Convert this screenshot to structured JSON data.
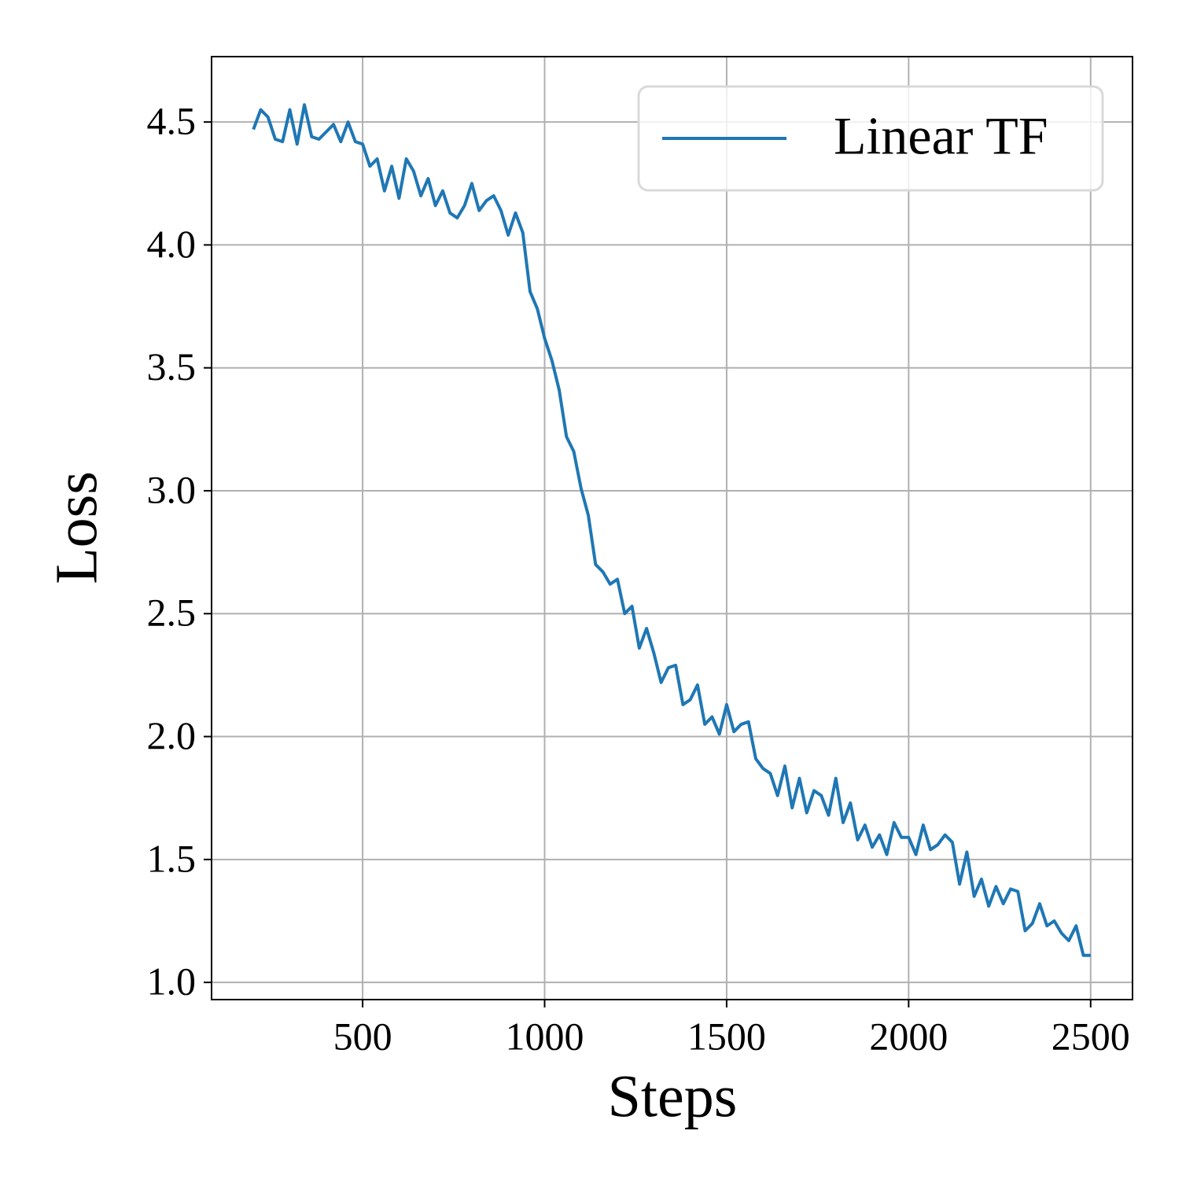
{
  "chart_data": {
    "type": "line",
    "x_label": "Steps",
    "y_label": "Loss",
    "x": [
      200,
      220,
      240,
      260,
      280,
      300,
      320,
      340,
      360,
      380,
      400,
      420,
      440,
      460,
      480,
      500,
      520,
      540,
      560,
      580,
      600,
      620,
      640,
      660,
      680,
      700,
      720,
      740,
      760,
      780,
      800,
      820,
      840,
      860,
      880,
      900,
      920,
      940,
      960,
      980,
      1000,
      1020,
      1040,
      1060,
      1080,
      1100,
      1120,
      1140,
      1160,
      1180,
      1200,
      1220,
      1240,
      1260,
      1280,
      1300,
      1320,
      1340,
      1360,
      1380,
      1400,
      1420,
      1440,
      1460,
      1480,
      1500,
      1520,
      1540,
      1560,
      1580,
      1600,
      1620,
      1640,
      1660,
      1680,
      1700,
      1720,
      1740,
      1760,
      1780,
      1800,
      1820,
      1840,
      1860,
      1880,
      1900,
      1920,
      1940,
      1960,
      1980,
      2000,
      2020,
      2040,
      2060,
      2080,
      2100,
      2120,
      2140,
      2160,
      2180,
      2200,
      2220,
      2240,
      2260,
      2280,
      2300,
      2320,
      2340,
      2360,
      2380,
      2400,
      2420,
      2440,
      2460,
      2480,
      2500
    ],
    "series": [
      {
        "name": "Linear TF",
        "color": "#1f77b4",
        "values": [
          4.47,
          4.55,
          4.52,
          4.43,
          4.42,
          4.55,
          4.41,
          4.57,
          4.44,
          4.43,
          4.46,
          4.49,
          4.42,
          4.5,
          4.42,
          4.41,
          4.32,
          4.35,
          4.22,
          4.32,
          4.19,
          4.35,
          4.3,
          4.2,
          4.27,
          4.16,
          4.22,
          4.13,
          4.11,
          4.16,
          4.25,
          4.14,
          4.18,
          4.2,
          4.14,
          4.04,
          4.13,
          4.05,
          3.81,
          3.74,
          3.62,
          3.53,
          3.41,
          3.22,
          3.16,
          3.01,
          2.9,
          2.7,
          2.67,
          2.62,
          2.64,
          2.5,
          2.53,
          2.36,
          2.44,
          2.34,
          2.22,
          2.28,
          2.29,
          2.13,
          2.15,
          2.21,
          2.05,
          2.08,
          2.01,
          2.13,
          2.02,
          2.05,
          2.06,
          1.91,
          1.87,
          1.85,
          1.76,
          1.88,
          1.71,
          1.83,
          1.69,
          1.78,
          1.76,
          1.68,
          1.83,
          1.65,
          1.73,
          1.58,
          1.64,
          1.55,
          1.6,
          1.52,
          1.65,
          1.59,
          1.59,
          1.52,
          1.64,
          1.54,
          1.56,
          1.6,
          1.57,
          1.4,
          1.53,
          1.35,
          1.42,
          1.31,
          1.39,
          1.32,
          1.38,
          1.37,
          1.21,
          1.24,
          1.32,
          1.23,
          1.25,
          1.2,
          1.17,
          1.23,
          1.11,
          1.11
        ]
      }
    ],
    "xlim": [
      85,
      2615
    ],
    "ylim": [
      0.93,
      4.766
    ],
    "xticks": [
      500,
      1000,
      1500,
      2000,
      2500
    ],
    "yticks": [
      {
        "value": 1,
        "label": "1.0"
      },
      1.5,
      {
        "value": 2,
        "label": "2.0"
      },
      2.5,
      {
        "value": 3,
        "label": "3.0"
      },
      3.5,
      {
        "value": 4,
        "label": "4.0"
      },
      4.5
    ],
    "grid": true,
    "legend": "upper right"
  }
}
